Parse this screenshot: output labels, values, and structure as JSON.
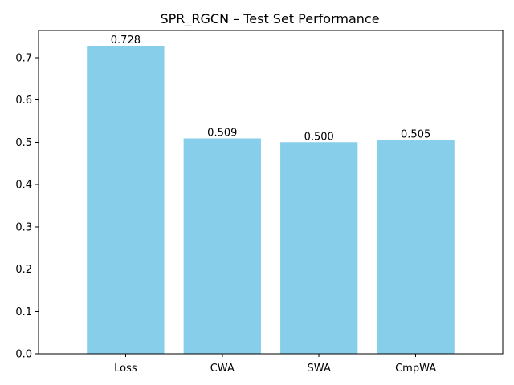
{
  "chart_data": {
    "type": "bar",
    "title": "SPR_RGCN – Test Set Performance",
    "xlabel": "",
    "ylabel": "",
    "categories": [
      "Loss",
      "CWA",
      "SWA",
      "CmpWA"
    ],
    "values": [
      0.728,
      0.509,
      0.5,
      0.505
    ],
    "data_labels": [
      "0.728",
      "0.509",
      "0.500",
      "0.505"
    ],
    "yticks": [
      0.0,
      0.1,
      0.2,
      0.3,
      0.4,
      0.5,
      0.6,
      0.7
    ],
    "ytick_labels": [
      "0.0",
      "0.1",
      "0.2",
      "0.3",
      "0.4",
      "0.5",
      "0.6",
      "0.7"
    ],
    "ylim": [
      0,
      0.764
    ],
    "grid": false,
    "legend": "none",
    "bar_color": "#87CEEB"
  }
}
